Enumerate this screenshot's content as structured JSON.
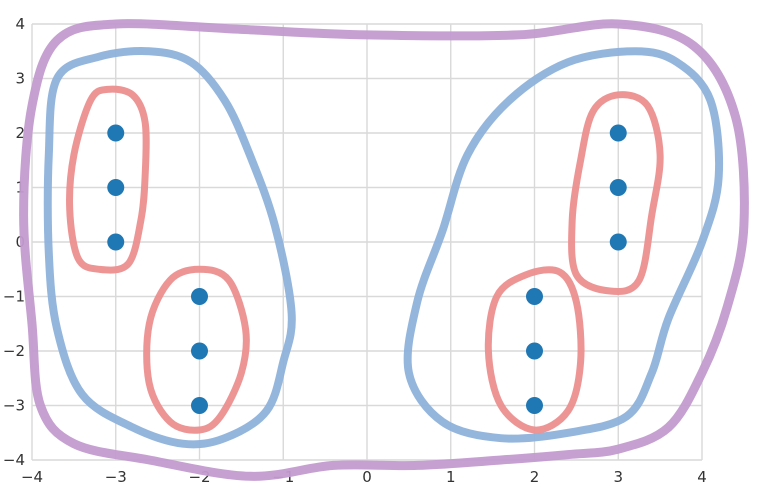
{
  "chart_data": {
    "type": "scatter",
    "title": "",
    "xlabel": "",
    "ylabel": "",
    "xlim": [
      -4,
      4
    ],
    "ylim": [
      -4,
      4
    ],
    "grid": true,
    "x_ticks": [
      -4,
      -3,
      -2,
      -1,
      0,
      1,
      2,
      3,
      4
    ],
    "y_ticks": [
      4,
      3,
      2,
      1,
      0,
      -1,
      -2,
      -3,
      -4
    ],
    "x_tick_labels": [
      "−4",
      "−3",
      "−2",
      "−1",
      "0",
      "1",
      "2",
      "3",
      "4"
    ],
    "y_tick_labels": [
      "4",
      "3",
      "2",
      "1",
      "0",
      "−1",
      "−2",
      "−3",
      "−4"
    ],
    "series": [
      {
        "color": "#1f77b4",
        "points": [
          {
            "x": -3,
            "y": 2
          },
          {
            "x": -3,
            "y": 1
          },
          {
            "x": -3,
            "y": 0
          },
          {
            "x": -2,
            "y": -1
          },
          {
            "x": -2,
            "y": -2
          },
          {
            "x": -2,
            "y": -3
          },
          {
            "x": 3,
            "y": 2
          },
          {
            "x": 3,
            "y": 1
          },
          {
            "x": 3,
            "y": 0
          },
          {
            "x": 2,
            "y": -1
          },
          {
            "x": 2,
            "y": -2
          },
          {
            "x": 2,
            "y": -3
          }
        ]
      }
    ],
    "annotations": [
      {
        "type": "hand-drawn-outline",
        "level": "outer",
        "color": "#c39bcf",
        "encloses": "all points",
        "outline": [
          [
            -3.7,
            3.7
          ],
          [
            -3.0,
            4.0
          ],
          [
            -1.5,
            3.9
          ],
          [
            0,
            3.8
          ],
          [
            1.8,
            3.8
          ],
          [
            3.0,
            4.0
          ],
          [
            3.9,
            3.6
          ],
          [
            4.4,
            2.3
          ],
          [
            4.5,
            0.3
          ],
          [
            4.3,
            -1.2
          ],
          [
            4.0,
            -2.4
          ],
          [
            3.6,
            -3.4
          ],
          [
            3.0,
            -3.8
          ],
          [
            2.4,
            -3.9
          ],
          [
            1.6,
            -4.0
          ],
          [
            0.6,
            -4.1
          ],
          [
            -0.4,
            -4.1
          ],
          [
            -1.4,
            -4.3
          ],
          [
            -2.6,
            -4.0
          ],
          [
            -3.5,
            -3.7
          ],
          [
            -3.9,
            -3.0
          ],
          [
            -4.0,
            -1.5
          ],
          [
            -4.1,
            0.5
          ],
          [
            -4.0,
            2.5
          ]
        ]
      },
      {
        "type": "hand-drawn-outline",
        "level": "middle",
        "color": "#8eb2db",
        "encloses": "left points",
        "outline": [
          [
            -2.6,
            3.5
          ],
          [
            -2.1,
            3.3
          ],
          [
            -1.7,
            2.6
          ],
          [
            -1.4,
            1.6
          ],
          [
            -1.1,
            0.3
          ],
          [
            -0.9,
            -1.3
          ],
          [
            -1.0,
            -2.2
          ],
          [
            -1.2,
            -3.1
          ],
          [
            -1.7,
            -3.6
          ],
          [
            -2.2,
            -3.7
          ],
          [
            -2.8,
            -3.4
          ],
          [
            -3.4,
            -2.8
          ],
          [
            -3.7,
            -1.6
          ],
          [
            -3.8,
            -0.2
          ],
          [
            -3.8,
            1.6
          ],
          [
            -3.7,
            3.0
          ],
          [
            -3.2,
            3.4
          ]
        ]
      },
      {
        "type": "hand-drawn-outline",
        "level": "middle",
        "color": "#8eb2db",
        "encloses": "right points",
        "outline": [
          [
            3.2,
            3.5
          ],
          [
            3.7,
            3.3
          ],
          [
            4.1,
            2.6
          ],
          [
            4.2,
            1.2
          ],
          [
            4.0,
            0.0
          ],
          [
            3.6,
            -1.4
          ],
          [
            3.4,
            -2.4
          ],
          [
            3.1,
            -3.2
          ],
          [
            2.4,
            -3.5
          ],
          [
            1.6,
            -3.6
          ],
          [
            0.9,
            -3.3
          ],
          [
            0.5,
            -2.4
          ],
          [
            0.6,
            -1.1
          ],
          [
            0.9,
            0.2
          ],
          [
            1.2,
            1.6
          ],
          [
            1.7,
            2.6
          ],
          [
            2.4,
            3.3
          ]
        ]
      },
      {
        "type": "hand-drawn-outline",
        "level": "inner",
        "color": "#ec8f8f",
        "encloses": "points (-3,2) (-3,1) (-3,0)",
        "outline": [
          [
            -3.1,
            2.8
          ],
          [
            -2.8,
            2.7
          ],
          [
            -2.65,
            2.2
          ],
          [
            -2.65,
            1.2
          ],
          [
            -2.7,
            0.4
          ],
          [
            -2.85,
            -0.4
          ],
          [
            -3.2,
            -0.5
          ],
          [
            -3.45,
            -0.3
          ],
          [
            -3.55,
            0.6
          ],
          [
            -3.5,
            1.6
          ],
          [
            -3.3,
            2.6
          ]
        ]
      },
      {
        "type": "hand-drawn-outline",
        "level": "inner",
        "color": "#ec8f8f",
        "encloses": "points (-2,-1) (-2,-2) (-2,-3)",
        "outline": [
          [
            -2.0,
            -0.5
          ],
          [
            -1.65,
            -0.7
          ],
          [
            -1.45,
            -1.6
          ],
          [
            -1.5,
            -2.4
          ],
          [
            -1.75,
            -3.2
          ],
          [
            -2.0,
            -3.45
          ],
          [
            -2.35,
            -3.3
          ],
          [
            -2.6,
            -2.6
          ],
          [
            -2.6,
            -1.5
          ],
          [
            -2.35,
            -0.7
          ]
        ]
      },
      {
        "type": "hand-drawn-outline",
        "level": "inner",
        "color": "#ec8f8f",
        "encloses": "points (3,2) (3,1) (3,0)",
        "outline": [
          [
            3.0,
            2.7
          ],
          [
            3.35,
            2.5
          ],
          [
            3.5,
            1.6
          ],
          [
            3.4,
            0.5
          ],
          [
            3.25,
            -0.7
          ],
          [
            2.9,
            -0.9
          ],
          [
            2.5,
            -0.6
          ],
          [
            2.45,
            0.4
          ],
          [
            2.55,
            1.5
          ],
          [
            2.7,
            2.4
          ]
        ]
      },
      {
        "type": "hand-drawn-outline",
        "level": "inner",
        "color": "#ec8f8f",
        "encloses": "points (2,-1) (2,-2) (2,-3)",
        "outline": [
          [
            2.3,
            -0.55
          ],
          [
            2.5,
            -1.1
          ],
          [
            2.55,
            -2.2
          ],
          [
            2.4,
            -3.1
          ],
          [
            2.0,
            -3.45
          ],
          [
            1.6,
            -3.0
          ],
          [
            1.45,
            -2.0
          ],
          [
            1.55,
            -1.0
          ],
          [
            1.9,
            -0.6
          ]
        ]
      }
    ]
  }
}
